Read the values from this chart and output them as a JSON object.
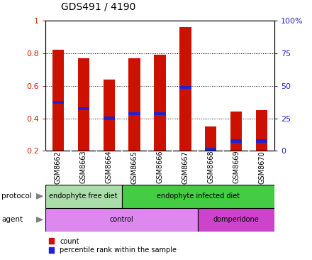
{
  "title": "GDS491 / 4190",
  "samples": [
    "GSM8662",
    "GSM8663",
    "GSM8664",
    "GSM8665",
    "GSM8666",
    "GSM8667",
    "GSM8668",
    "GSM8669",
    "GSM8670"
  ],
  "count_values": [
    0.82,
    0.77,
    0.64,
    0.77,
    0.79,
    0.96,
    0.35,
    0.44,
    0.45
  ],
  "percentile_values": [
    0.5,
    0.46,
    0.4,
    0.43,
    0.43,
    0.59,
    0.21,
    0.26,
    0.26
  ],
  "bar_bottom": 0.2,
  "ylim_left": [
    0.2,
    1.0
  ],
  "ylim_right": [
    0,
    100
  ],
  "yticks_left": [
    0.2,
    0.4,
    0.6,
    0.8,
    1.0
  ],
  "yticks_right": [
    0,
    25,
    50,
    75,
    100
  ],
  "ytick_labels_left": [
    "0.2",
    "0.4",
    "0.6",
    "0.8",
    "1"
  ],
  "ytick_labels_right": [
    "0",
    "25",
    "50",
    "75",
    "100%"
  ],
  "bar_color": "#cc1100",
  "percentile_color": "#2222cc",
  "protocol_groups": [
    {
      "label": "endophyte free diet",
      "start": 0,
      "end": 3,
      "color": "#aaddaa"
    },
    {
      "label": "endophyte infected diet",
      "start": 3,
      "end": 9,
      "color": "#44cc44"
    }
  ],
  "agent_groups": [
    {
      "label": "control",
      "start": 0,
      "end": 6,
      "color": "#dd88ee"
    },
    {
      "label": "domperidone",
      "start": 6,
      "end": 9,
      "color": "#cc44cc"
    }
  ],
  "legend_count_label": "count",
  "legend_percentile_label": "percentile rank within the sample",
  "bg_color": "#ffffff",
  "tick_label_color_left": "#cc2200",
  "tick_label_color_right": "#2222cc",
  "bar_width": 0.45,
  "sample_box_color": "#cccccc",
  "sample_box_divider": "#ffffff",
  "title_fontsize": 10,
  "label_fontsize": 7,
  "ytick_fontsize": 8
}
